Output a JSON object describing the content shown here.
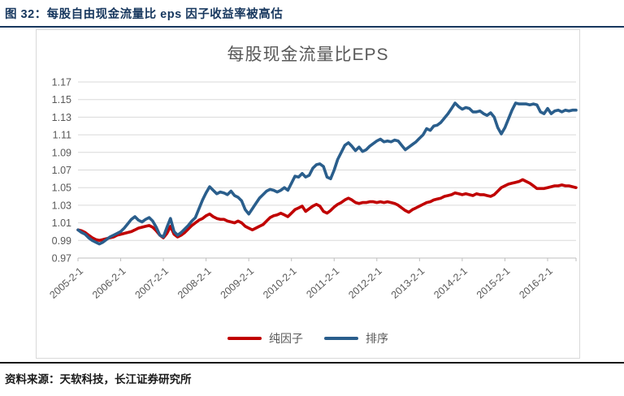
{
  "figure": {
    "caption": "图 32：每股自由现金流量比 eps 因子收益率被高估",
    "source": "资料来源：天软科技，长江证券研究所"
  },
  "chart_data": {
    "type": "line",
    "title": "每股现金流量比EPS",
    "x_start": "2005-02",
    "x_frequency": "monthly",
    "x_tick_labels": [
      "2005-2-1",
      "2006-2-1",
      "2007-2-1",
      "2008-2-1",
      "2009-2-1",
      "2010-2-1",
      "2011-2-1",
      "2012-2-1",
      "2013-2-1",
      "2014-2-1",
      "2015-2-1",
      "2016-2-1"
    ],
    "y_tick_labels": [
      "1.17",
      "1.15",
      "1.13",
      "1.11",
      "1.09",
      "1.07",
      "1.05",
      "1.03",
      "1.01",
      "0.99",
      "0.97"
    ],
    "ylim": [
      0.97,
      1.17
    ],
    "grid": "horizontal",
    "gridline_color": "#d9d9d9",
    "axis_color": "#bfbfbf",
    "label_color": "#595959",
    "legend_position": "bottom",
    "series": [
      {
        "name": "纯因子",
        "color": "#c00000",
        "values": [
          1.002,
          1.001,
          0.999,
          0.996,
          0.993,
          0.991,
          0.99,
          0.991,
          0.992,
          0.993,
          0.994,
          0.996,
          0.997,
          0.998,
          0.999,
          1.0,
          1.002,
          1.004,
          1.005,
          1.006,
          1.007,
          1.005,
          1.001,
          0.996,
          0.993,
          0.998,
          1.006,
          0.997,
          0.994,
          0.996,
          0.999,
          1.003,
          1.007,
          1.01,
          1.013,
          1.015,
          1.018,
          1.02,
          1.017,
          1.015,
          1.014,
          1.014,
          1.012,
          1.011,
          1.01,
          1.012,
          1.01,
          1.006,
          1.004,
          1.002,
          1.004,
          1.006,
          1.008,
          1.012,
          1.016,
          1.018,
          1.019,
          1.021,
          1.019,
          1.017,
          1.021,
          1.025,
          1.027,
          1.029,
          1.023,
          1.026,
          1.029,
          1.031,
          1.029,
          1.023,
          1.021,
          1.024,
          1.028,
          1.031,
          1.033,
          1.036,
          1.038,
          1.036,
          1.033,
          1.032,
          1.033,
          1.033,
          1.034,
          1.034,
          1.033,
          1.034,
          1.033,
          1.034,
          1.033,
          1.032,
          1.03,
          1.027,
          1.024,
          1.022,
          1.025,
          1.027,
          1.029,
          1.031,
          1.033,
          1.034,
          1.036,
          1.037,
          1.038,
          1.04,
          1.041,
          1.042,
          1.044,
          1.043,
          1.042,
          1.043,
          1.042,
          1.041,
          1.043,
          1.042,
          1.042,
          1.041,
          1.04,
          1.042,
          1.046,
          1.05,
          1.052,
          1.054,
          1.055,
          1.056,
          1.057,
          1.059,
          1.057,
          1.055,
          1.052,
          1.049,
          1.049,
          1.049,
          1.05,
          1.051,
          1.052,
          1.052,
          1.053,
          1.052,
          1.052,
          1.051,
          1.05
        ]
      },
      {
        "name": "排序",
        "color": "#2a5e8c",
        "values": [
          1.002,
          0.999,
          0.997,
          0.993,
          0.99,
          0.988,
          0.986,
          0.988,
          0.991,
          0.994,
          0.996,
          0.998,
          1.0,
          1.004,
          1.009,
          1.014,
          1.017,
          1.013,
          1.011,
          1.014,
          1.016,
          1.012,
          1.005,
          0.996,
          0.994,
          1.005,
          1.015,
          1.0,
          0.996,
          0.999,
          1.003,
          1.007,
          1.012,
          1.016,
          1.026,
          1.036,
          1.044,
          1.051,
          1.047,
          1.043,
          1.045,
          1.044,
          1.042,
          1.046,
          1.041,
          1.039,
          1.035,
          1.025,
          1.02,
          1.026,
          1.032,
          1.038,
          1.042,
          1.046,
          1.048,
          1.047,
          1.045,
          1.047,
          1.05,
          1.047,
          1.055,
          1.063,
          1.062,
          1.066,
          1.062,
          1.064,
          1.072,
          1.076,
          1.077,
          1.074,
          1.062,
          1.06,
          1.07,
          1.082,
          1.09,
          1.098,
          1.101,
          1.097,
          1.092,
          1.096,
          1.091,
          1.093,
          1.097,
          1.1,
          1.103,
          1.105,
          1.102,
          1.103,
          1.102,
          1.104,
          1.103,
          1.098,
          1.093,
          1.096,
          1.099,
          1.102,
          1.106,
          1.11,
          1.117,
          1.115,
          1.12,
          1.121,
          1.124,
          1.129,
          1.134,
          1.14,
          1.146,
          1.142,
          1.139,
          1.141,
          1.14,
          1.136,
          1.136,
          1.137,
          1.134,
          1.132,
          1.135,
          1.13,
          1.118,
          1.111,
          1.118,
          1.128,
          1.138,
          1.146,
          1.145,
          1.145,
          1.145,
          1.144,
          1.145,
          1.144,
          1.136,
          1.134,
          1.14,
          1.134,
          1.137,
          1.138,
          1.136,
          1.138,
          1.137,
          1.138,
          1.138
        ]
      }
    ]
  }
}
